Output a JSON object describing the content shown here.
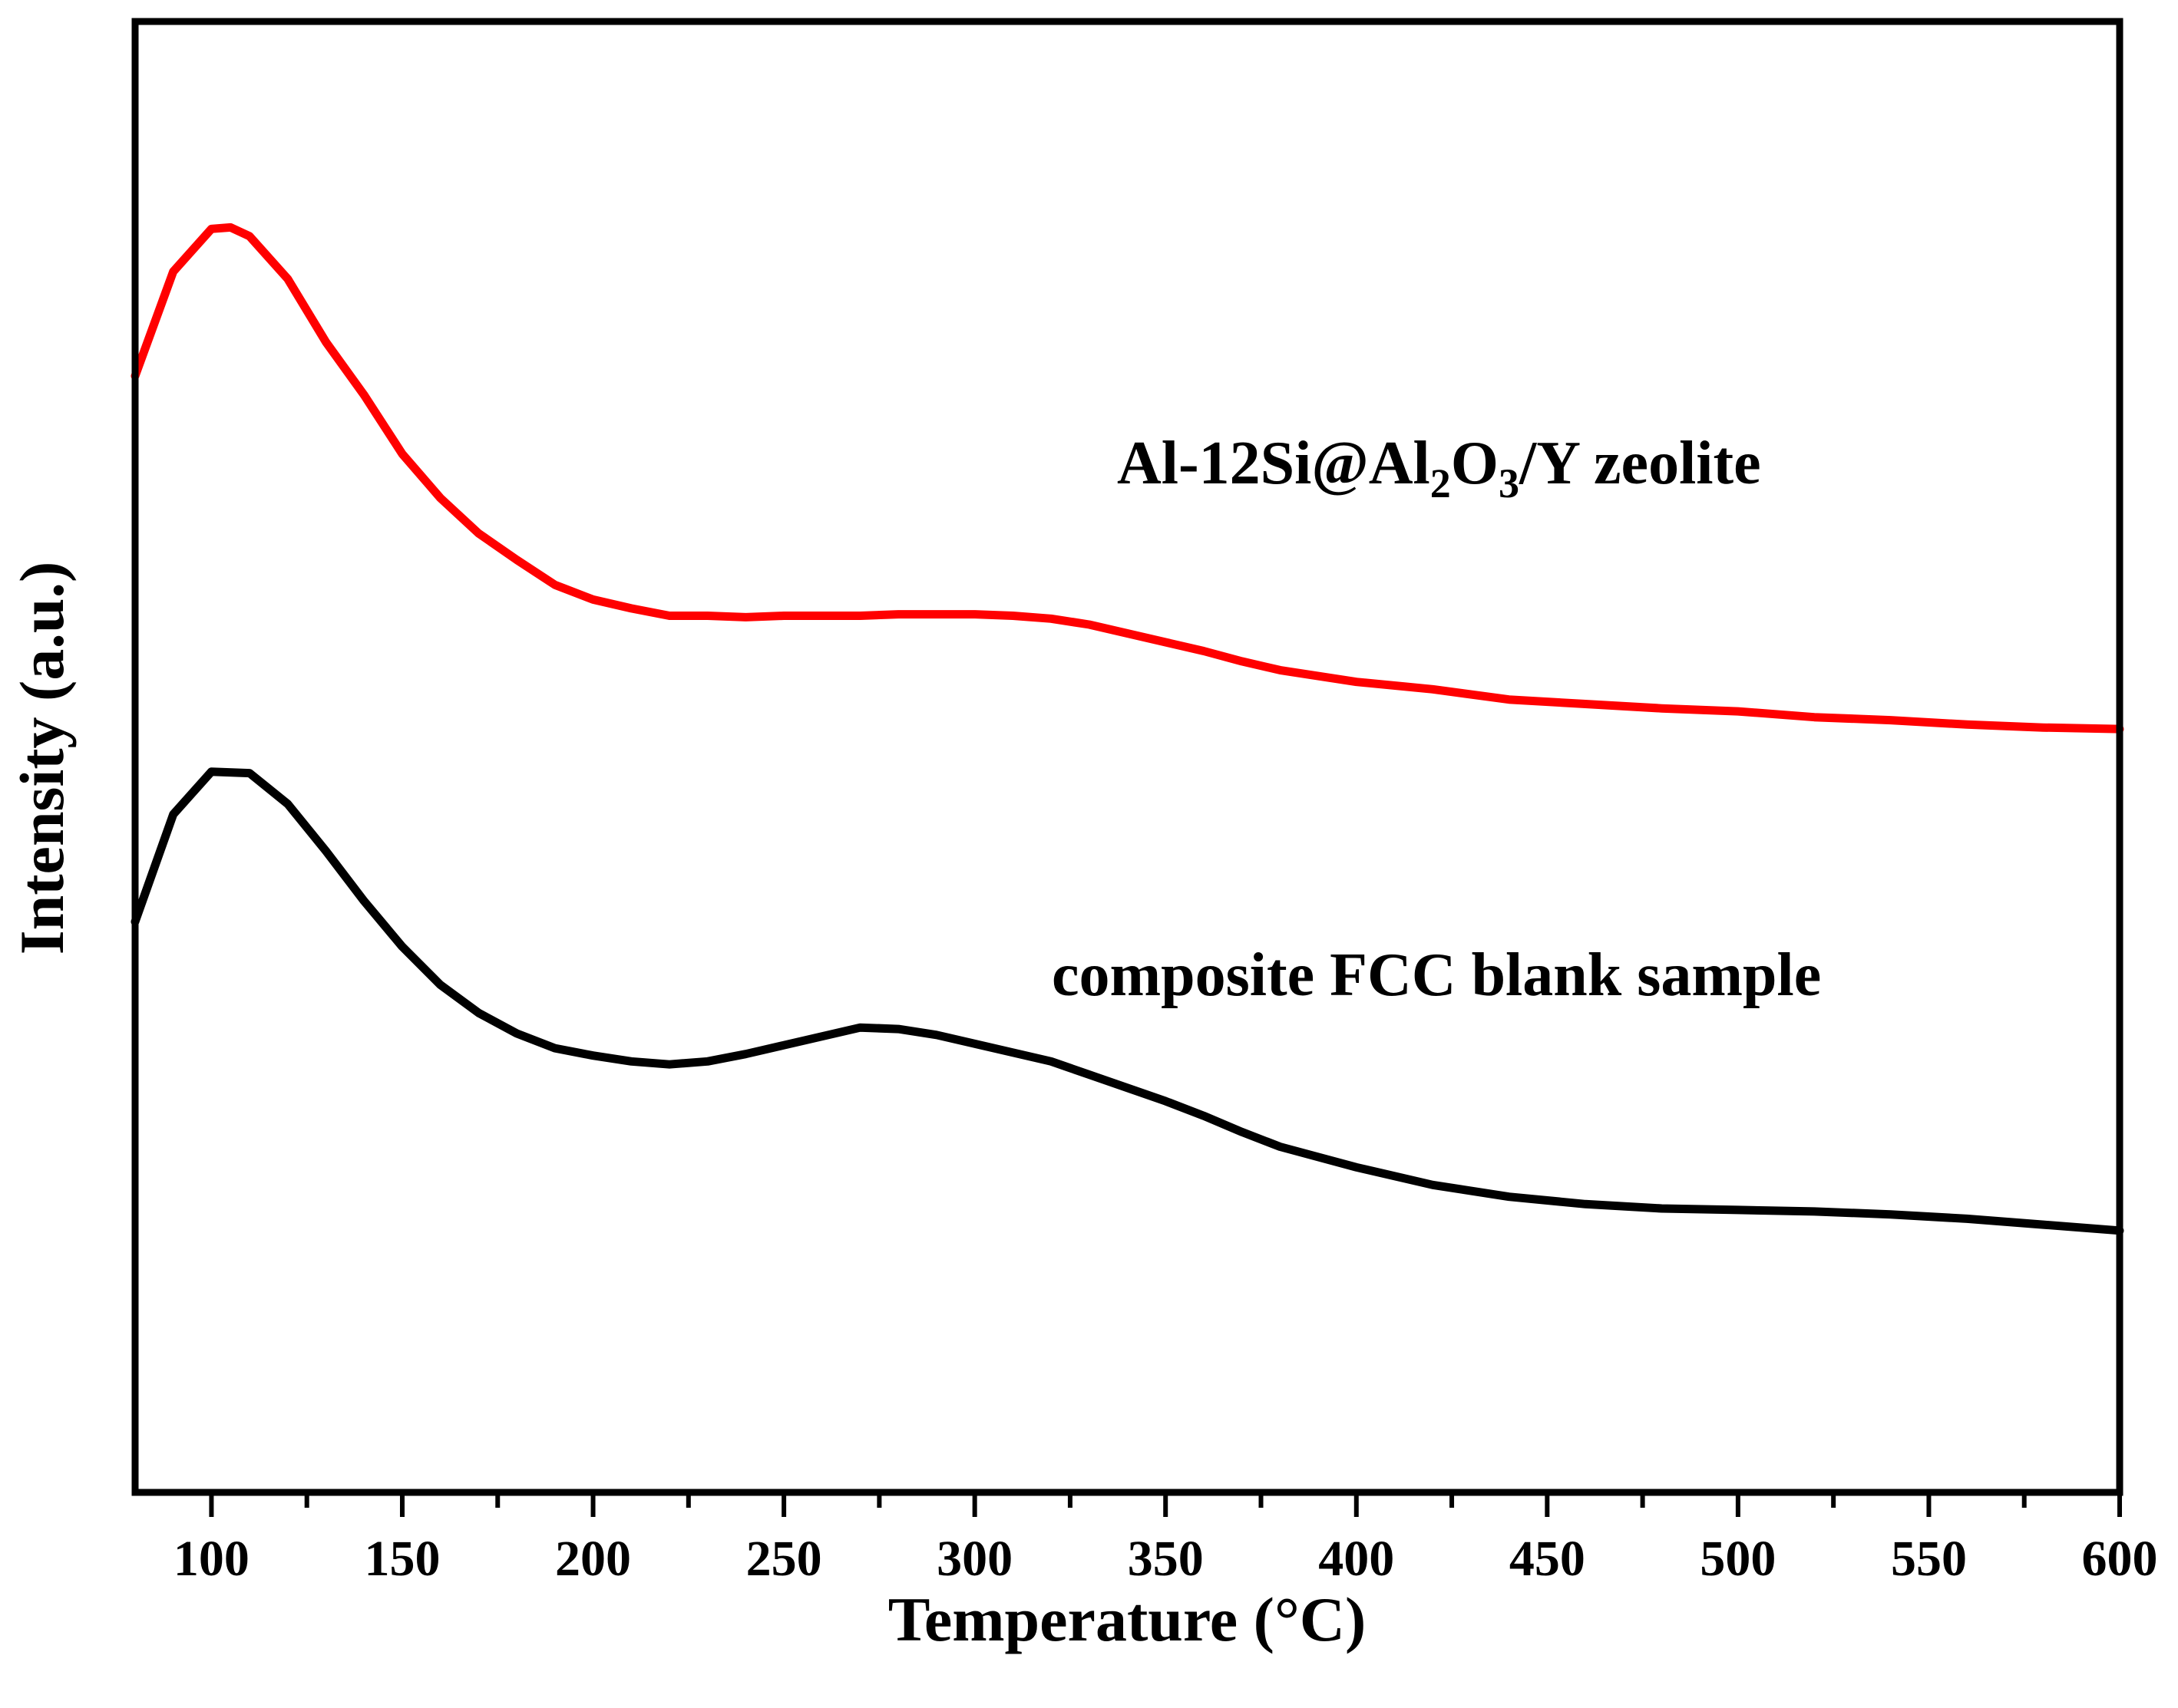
{
  "chart_data": {
    "type": "line",
    "xlabel": "Temperature (°C)",
    "ylabel": "Intensity (a.u.)",
    "xlim": [
      80,
      600
    ],
    "ylim": [
      0,
      100
    ],
    "x_ticks": [
      100,
      150,
      200,
      250,
      300,
      350,
      400,
      450,
      500,
      550,
      600
    ],
    "x_tick_labels": [
      "100",
      "150",
      "200",
      "250",
      "300",
      "350",
      "400",
      "450",
      "500",
      "550",
      "600"
    ],
    "y_ticks_shown": false,
    "grid": false,
    "series": [
      {
        "name": "Al-12Si@Al2O3/Y zeolite",
        "label_parts": {
          "pre": "Al-12Si@Al",
          "sub1": "2",
          "mid": "O",
          "sub2": "3",
          "post": "/Y zeolite"
        },
        "color": "#ff0000",
        "x": [
          80,
          90,
          100,
          105,
          110,
          120,
          130,
          140,
          150,
          160,
          170,
          180,
          190,
          200,
          210,
          220,
          230,
          240,
          250,
          260,
          270,
          280,
          290,
          300,
          310,
          320,
          330,
          340,
          350,
          360,
          370,
          380,
          400,
          420,
          440,
          460,
          480,
          500,
          520,
          540,
          560,
          580,
          600
        ],
        "y": [
          75.9,
          83.0,
          85.9,
          86.0,
          85.4,
          82.5,
          78.2,
          74.6,
          70.6,
          67.6,
          65.2,
          63.4,
          61.7,
          60.7,
          60.1,
          59.6,
          59.6,
          59.5,
          59.6,
          59.6,
          59.6,
          59.7,
          59.7,
          59.7,
          59.6,
          59.4,
          59.0,
          58.4,
          57.8,
          57.2,
          56.5,
          55.9,
          55.1,
          54.6,
          53.9,
          53.6,
          53.3,
          53.1,
          52.7,
          52.5,
          52.2,
          52.0,
          51.9
        ]
      },
      {
        "name": "composite FCC blank sample",
        "color": "#000000",
        "x": [
          80,
          90,
          100,
          110,
          120,
          130,
          140,
          150,
          160,
          170,
          180,
          190,
          200,
          210,
          220,
          230,
          240,
          250,
          260,
          270,
          280,
          290,
          300,
          310,
          320,
          330,
          340,
          350,
          360,
          370,
          380,
          400,
          420,
          440,
          460,
          480,
          500,
          520,
          540,
          560,
          580,
          600
        ],
        "y": [
          38.8,
          46.1,
          49.0,
          48.9,
          46.8,
          43.6,
          40.2,
          37.1,
          34.5,
          32.6,
          31.2,
          30.2,
          29.7,
          29.3,
          29.1,
          29.3,
          29.8,
          30.4,
          31.0,
          31.6,
          31.5,
          31.1,
          30.5,
          29.9,
          29.3,
          28.4,
          27.5,
          26.6,
          25.6,
          24.5,
          23.5,
          22.1,
          20.9,
          20.1,
          19.6,
          19.3,
          19.2,
          19.1,
          18.9,
          18.6,
          18.2,
          17.8
        ]
      }
    ],
    "annotations": {
      "red_label_near": "x≈330–350 °C, above red curve",
      "black_label": "composite FCC blank sample"
    }
  }
}
